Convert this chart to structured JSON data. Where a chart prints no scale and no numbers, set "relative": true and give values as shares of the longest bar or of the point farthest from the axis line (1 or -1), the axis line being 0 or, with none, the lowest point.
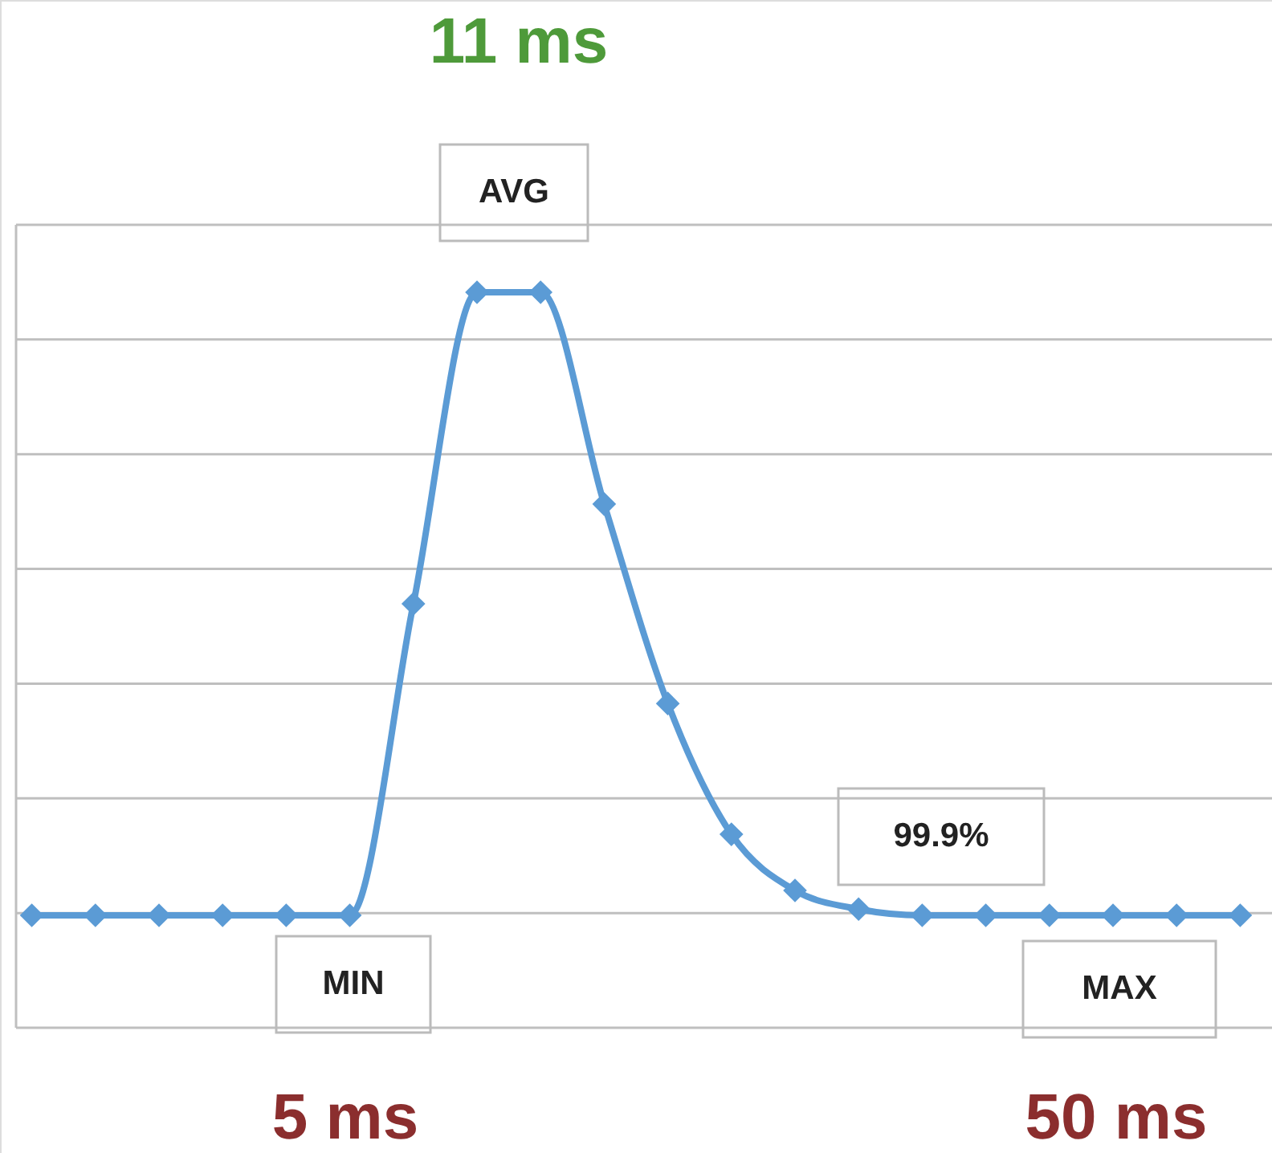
{
  "chart_data": {
    "type": "line",
    "relative": true,
    "grid": "y",
    "marker": "diamond",
    "line_style": "solid",
    "categories": [
      null,
      null,
      null,
      null,
      null,
      null,
      null,
      null,
      null,
      null,
      null,
      null,
      null,
      null,
      null,
      null,
      null,
      null,
      null,
      null
    ],
    "series": [
      {
        "color": "#5b9bd5",
        "values": [
          0,
          0,
          0,
          0,
          0,
          0,
          0.5,
          1,
          1,
          0.66,
          0.34,
          0.13,
          0.04,
          0.01,
          0,
          0,
          0,
          0,
          0,
          0
        ]
      }
    ],
    "annotations": [
      "11 ms",
      "AVG",
      "99.9%",
      "MIN",
      "MAX",
      "5 ms",
      "50 ms"
    ]
  }
}
